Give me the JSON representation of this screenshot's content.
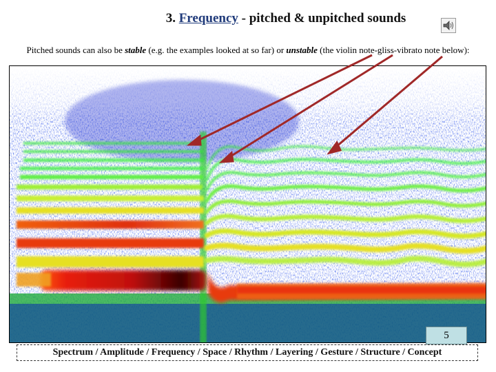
{
  "title": {
    "number": "3. ",
    "link": "Frequency",
    "rest": " - pitched & unpitched sounds"
  },
  "subtitle": {
    "part1": "Pitched sounds can also be ",
    "stable": "stable",
    "part2": " (e.g. the examples looked at so far) or ",
    "unstable": "unstable",
    "part3": " (the violin note-gliss-vibrato note below):"
  },
  "icons": {
    "audio": "speaker-icon"
  },
  "colors": {
    "title_link": "#1f3a7a",
    "arrow": "#a02828",
    "spectrogram_low": "#1428d8",
    "spectrogram_mid": "#2ee82e",
    "spectrogram_high": "#e81e10",
    "spectrogram_peak": "#3a0000",
    "page_badge": "#bfe0e4"
  },
  "page_number": "5",
  "footer_nav": "Spectrum / Amplitude / Frequency / Space / Rhythm / Layering / Gesture / Structure / Concept"
}
